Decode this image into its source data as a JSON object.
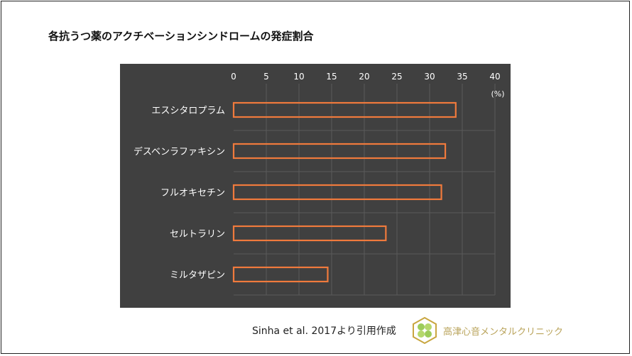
{
  "title": "各抗うつ薬のアクチベーションシンドロームの発症割合",
  "chart_data": {
    "type": "bar",
    "orientation": "horizontal",
    "title": "",
    "unit_label": "(%)",
    "categories": [
      "エスシタロプラム",
      "デスベンラファキシン",
      "フルオキセチン",
      "セルトラリン",
      "ミルタザピン"
    ],
    "values": [
      34.0,
      32.4,
      31.8,
      23.3,
      14.4
    ],
    "xlim": [
      0,
      40
    ],
    "ticks": [
      "0",
      "5",
      "10",
      "15",
      "20",
      "25",
      "30",
      "35",
      "40"
    ],
    "grid": true,
    "background": "#404040",
    "bar_outline_color": "#f07a3c",
    "text_color": "#ffffff"
  },
  "footer": {
    "source": "Sinha et al. 2017より引用作成",
    "clinic_name": "高津心音メンタルクリニック"
  }
}
